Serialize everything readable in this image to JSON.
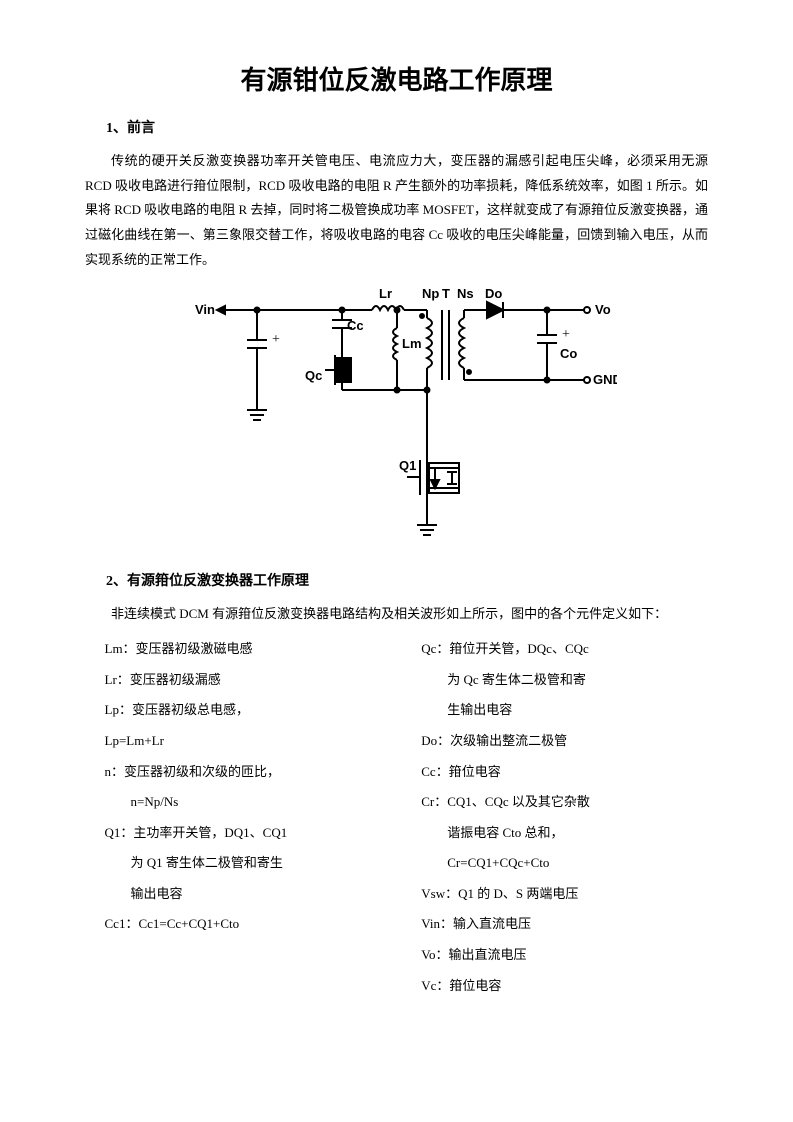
{
  "title": "有源钳位反激电路工作原理",
  "section1": {
    "heading": "1、前言",
    "paragraph": "传统的硬开关反激变换器功率开关管电压、电流应力大，变压器的漏感引起电压尖峰，必须采用无源 RCD 吸收电路进行箝位限制，RCD 吸收电路的电阻 R 产生额外的功率损耗，降低系统效率，如图 1 所示。如果将 RCD 吸收电路的电阻 R 去掉，同时将二极管换成功率 MOSFET，这样就变成了有源箝位反激变换器，通过磁化曲线在第一、第三象限交替工作，将吸收电路的电容 Cc 吸收的电压尖峰能量，回馈到输入电压，从而实现系统的正常工作。"
  },
  "circuit": {
    "labels": {
      "vin": "Vin",
      "lr": "Lr",
      "np": "Np",
      "t": "T",
      "ns": "Ns",
      "do": "Do",
      "vo": "Vo",
      "cc": "Cc",
      "lm": "Lm",
      "co": "Co",
      "gnd": "GND",
      "qc": "Qc",
      "q1": "Q1"
    },
    "stroke_color": "#000000",
    "stroke_width": 2
  },
  "section2": {
    "heading": "2、有源箝位反激变换器工作原理",
    "paragraph": "非连续模式 DCM 有源箝位反激变换器电路结构及相关波形如上所示，图中的各个元件定义如下："
  },
  "definitions": {
    "left": [
      {
        "text": "Lm：变压器初级激磁电感",
        "sub": false
      },
      {
        "text": "Lr：变压器初级漏感",
        "sub": false
      },
      {
        "text": "Lp：变压器初级总电感，",
        "sub": false
      },
      {
        "text": "Lp=Lm+Lr",
        "sub": false
      },
      {
        "text": "n：变压器初级和次级的匝比，",
        "sub": false
      },
      {
        "text": "n=Np/Ns",
        "sub": true
      },
      {
        "text": "Q1：主功率开关管，DQ1、CQ1",
        "sub": false
      },
      {
        "text": "为 Q1 寄生体二极管和寄生",
        "sub": true
      },
      {
        "text": "输出电容",
        "sub": true
      },
      {
        "text": "Cc1：Cc1=Cc+CQ1+Cto",
        "sub": false
      }
    ],
    "right": [
      {
        "text": "Qc：箝位开关管，DQc、CQc",
        "sub": false
      },
      {
        "text": "为 Qc 寄生体二极管和寄",
        "sub": true
      },
      {
        "text": "生输出电容",
        "sub": true
      },
      {
        "text": "Do：次级输出整流二极管",
        "sub": false
      },
      {
        "text": "Cc：箝位电容",
        "sub": false
      },
      {
        "text": "Cr：CQ1、CQc 以及其它杂散",
        "sub": false
      },
      {
        "text": "谐振电容 Cto 总和，",
        "sub": true
      },
      {
        "text": "Cr=CQ1+CQc+Cto",
        "sub": true
      },
      {
        "text": "Vsw：Q1 的 D、S 两端电压",
        "sub": false
      },
      {
        "text": "Vin：输入直流电压",
        "sub": false
      },
      {
        "text": "Vo：输出直流电压",
        "sub": false
      },
      {
        "text": "Vc：箝位电容",
        "sub": false
      }
    ]
  }
}
